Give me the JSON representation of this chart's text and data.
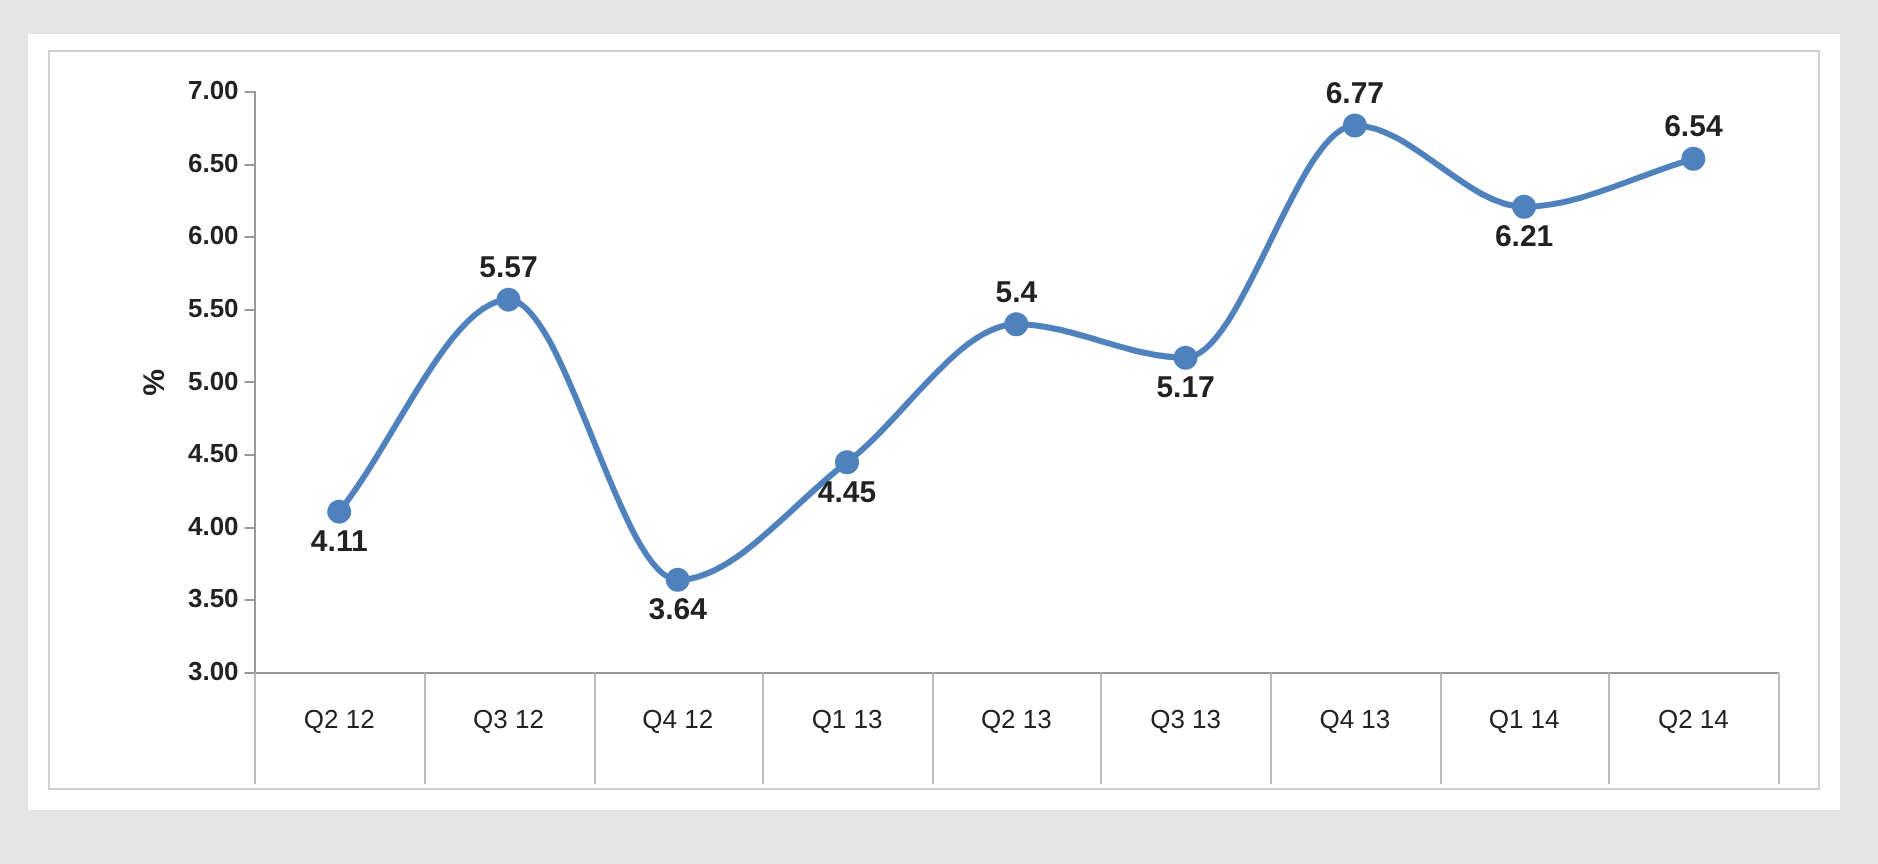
{
  "chart_data": {
    "type": "line",
    "ylabel": "%",
    "categories": [
      "Q2 12",
      "Q3 12",
      "Q4 12",
      "Q1 13",
      "Q2 13",
      "Q3 13",
      "Q4 13",
      "Q1 14",
      "Q2 14"
    ],
    "series": [
      {
        "color": "#4f81bd",
        "values": [
          4.11,
          5.57,
          3.64,
          4.45,
          5.4,
          5.17,
          6.77,
          6.21,
          6.54
        ]
      }
    ],
    "ylim": [
      3,
      7
    ],
    "yticks": [
      {
        "value": 3,
        "label": "3.00"
      },
      {
        "value": 3.5,
        "label": "3.50"
      },
      {
        "value": 4,
        "label": "4.00"
      },
      {
        "value": 4.5,
        "label": "4.50"
      },
      {
        "value": 5,
        "label": "5.00"
      },
      {
        "value": 5.5,
        "label": "5.50"
      },
      {
        "value": 6,
        "label": "6.00"
      },
      {
        "value": 6.5,
        "label": "6.50"
      },
      {
        "value": 7,
        "label": "7.00"
      }
    ],
    "grid": false,
    "legend": false,
    "marker": "circle",
    "line_style": "solid",
    "data_labels": true
  }
}
